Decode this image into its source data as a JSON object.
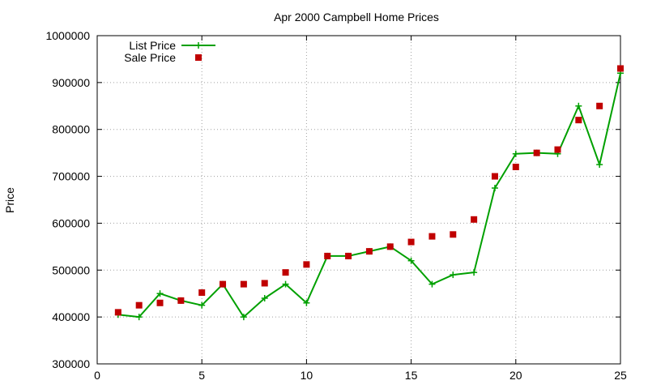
{
  "chart_data": {
    "type": "line",
    "title": "Apr 2000 Campbell Home Prices",
    "xlabel": "",
    "ylabel": "Price",
    "xlim": [
      0,
      25
    ],
    "ylim": [
      300000,
      1000000
    ],
    "x_ticks": [
      0,
      5,
      10,
      15,
      20,
      25
    ],
    "y_ticks": [
      300000,
      400000,
      500000,
      600000,
      700000,
      800000,
      900000,
      1000000
    ],
    "x_tick_labels": [
      "0",
      "5",
      "10",
      "15",
      "20",
      "25"
    ],
    "y_tick_labels": [
      "300000",
      "400000",
      "500000",
      "600000",
      "700000",
      "800000",
      "900000",
      "1000000"
    ],
    "grid": true,
    "legend_position": "top-left",
    "x": [
      1,
      2,
      3,
      4,
      5,
      6,
      7,
      8,
      9,
      10,
      11,
      12,
      13,
      14,
      15,
      16,
      17,
      18,
      19,
      20,
      21,
      22,
      23,
      24,
      25
    ],
    "series": [
      {
        "name": "List Price",
        "style": "line-plus",
        "color": "#00a000",
        "values": [
          405000,
          400000,
          450000,
          435000,
          425000,
          470000,
          400000,
          440000,
          470000,
          430000,
          530000,
          530000,
          540000,
          550000,
          520000,
          470000,
          490000,
          495000,
          675000,
          748000,
          750000,
          748000,
          850000,
          725000,
          920000
        ]
      },
      {
        "name": "Sale Price",
        "style": "square",
        "color": "#c00000",
        "values": [
          410000,
          425000,
          430000,
          435000,
          452000,
          470000,
          470000,
          472000,
          495000,
          512000,
          530000,
          530000,
          540000,
          550000,
          560000,
          572000,
          576000,
          608000,
          700000,
          720000,
          750000,
          757000,
          820000,
          850000,
          930000
        ]
      }
    ]
  }
}
